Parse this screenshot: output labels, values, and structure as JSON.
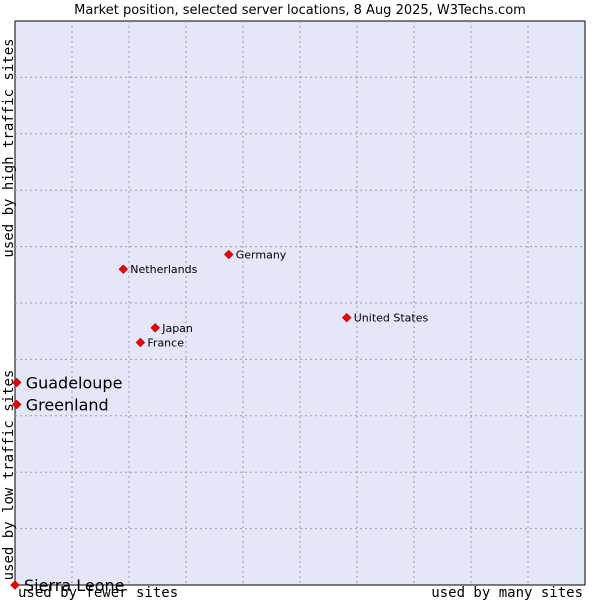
{
  "chart_data": {
    "type": "scatter",
    "title": "Market position, selected server locations, 8 Aug 2025, W3Techs.com",
    "xlabel_left": "used by fewer sites",
    "xlabel_right": "used by many sites",
    "ylabel_bottom": "used by low traffic sites",
    "ylabel_top": "used by high traffic sites",
    "xlim": [
      0,
      100
    ],
    "ylim": [
      0,
      100
    ],
    "grid": true,
    "plot_background": "#e4e6f9",
    "point_color": "#ee0000",
    "points": [
      {
        "name": "Germany",
        "x": 37.5,
        "y": 58.6,
        "label_size": "small"
      },
      {
        "name": "Netherlands",
        "x": 19.0,
        "y": 56.0,
        "label_size": "small"
      },
      {
        "name": "United States",
        "x": 58.2,
        "y": 47.4,
        "label_size": "small"
      },
      {
        "name": "Japan",
        "x": 24.6,
        "y": 45.6,
        "label_size": "small"
      },
      {
        "name": "France",
        "x": 22.0,
        "y": 43.0,
        "label_size": "small"
      },
      {
        "name": "Guadeloupe",
        "x": 0.3,
        "y": 35.9,
        "label_size": "big"
      },
      {
        "name": "Greenland",
        "x": 0.3,
        "y": 32.0,
        "label_size": "big"
      },
      {
        "name": "Sierra Leone",
        "x": 0.0,
        "y": 0.0,
        "label_size": "big"
      }
    ]
  }
}
